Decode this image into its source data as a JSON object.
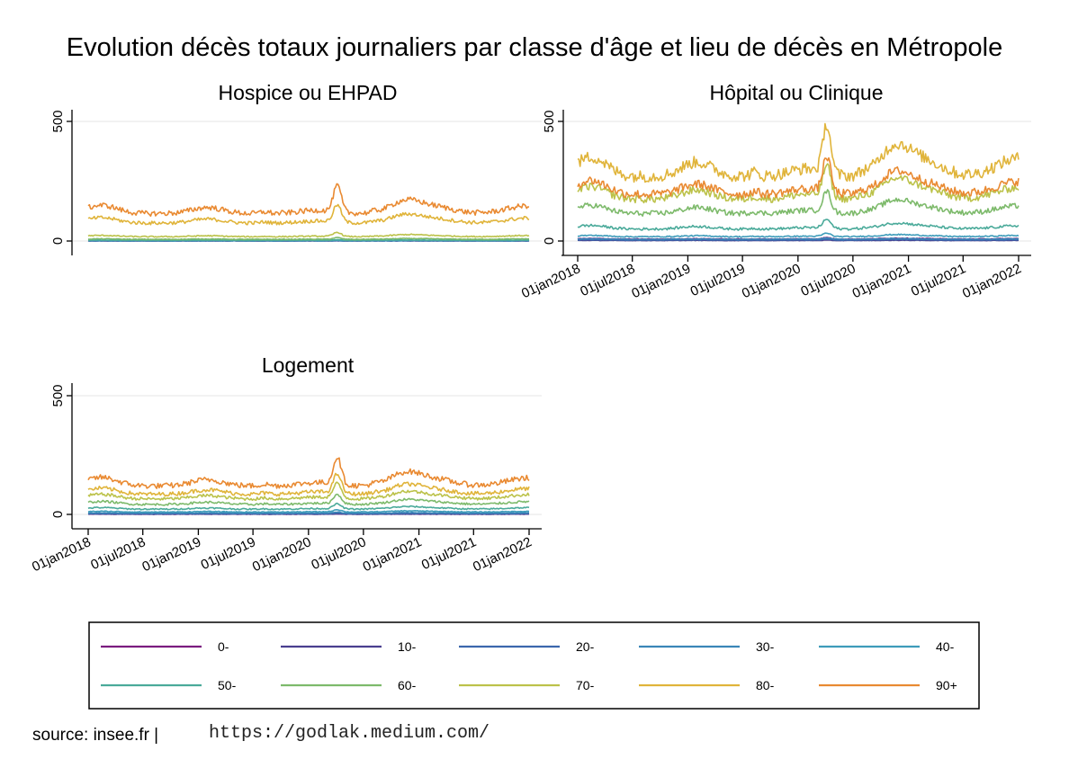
{
  "title": "Evolution décès totaux journaliers par classe d'âge et lieu de décès en Métropole",
  "footer": {
    "source": "source: insee.fr |",
    "url": "https://godlak.medium.com/"
  },
  "chart_data": {
    "type": "line",
    "x_ticks": [
      "01jan2018",
      "01jul2018",
      "01jan2019",
      "01jul2019",
      "01jan2020",
      "01jul2020",
      "01jan2021",
      "01jul2021",
      "01jan2022"
    ],
    "x_range": [
      "2018-01-01",
      "2022-01-01"
    ],
    "y_ticks": [
      0,
      500
    ],
    "ylim": [
      -50,
      560
    ],
    "grid": true,
    "legend": {
      "position": "bottom",
      "items": [
        {
          "label": "0-",
          "color": "#7b1c7f"
        },
        {
          "label": "10-",
          "color": "#4a3f8f"
        },
        {
          "label": "20-",
          "color": "#3b67ad"
        },
        {
          "label": "30-",
          "color": "#3a86b8"
        },
        {
          "label": "40-",
          "color": "#3e9cba"
        },
        {
          "label": "50-",
          "color": "#4aaa9a"
        },
        {
          "label": "60-",
          "color": "#7dba6b"
        },
        {
          "label": "70-",
          "color": "#bcc24a"
        },
        {
          "label": "80-",
          "color": "#e0b43a"
        },
        {
          "label": "90+",
          "color": "#e98a32"
        }
      ]
    },
    "panels": [
      {
        "name": "Hospice ou EHPAD",
        "show_x_axis": false,
        "series": [
          {
            "name": "0-",
            "base": 0.5
          },
          {
            "name": "10-",
            "base": 0.5
          },
          {
            "name": "20-",
            "base": 0.5
          },
          {
            "name": "30-",
            "base": 1
          },
          {
            "name": "40-",
            "base": 1.5
          },
          {
            "name": "50-",
            "base": 3
          },
          {
            "name": "60-",
            "base": 7
          },
          {
            "name": "70-",
            "base": 18
          },
          {
            "name": "80-",
            "base": 75
          },
          {
            "name": "90+",
            "base": 115
          }
        ]
      },
      {
        "name": "Hôpital ou Clinique",
        "show_x_axis": true,
        "series": [
          {
            "name": "0-",
            "base": 8
          },
          {
            "name": "10-",
            "base": 2
          },
          {
            "name": "20-",
            "base": 4
          },
          {
            "name": "30-",
            "base": 7
          },
          {
            "name": "40-",
            "base": 18
          },
          {
            "name": "50-",
            "base": 50
          },
          {
            "name": "60-",
            "base": 115
          },
          {
            "name": "70-",
            "base": 175
          },
          {
            "name": "80-",
            "base": 270
          },
          {
            "name": "90+",
            "base": 195
          }
        ]
      },
      {
        "name": "Logement",
        "show_x_axis": true,
        "series": [
          {
            "name": "0-",
            "base": 1
          },
          {
            "name": "10-",
            "base": 1
          },
          {
            "name": "20-",
            "base": 3
          },
          {
            "name": "30-",
            "base": 5
          },
          {
            "name": "40-",
            "base": 10
          },
          {
            "name": "50-",
            "base": 22
          },
          {
            "name": "60-",
            "base": 42
          },
          {
            "name": "70-",
            "base": 65
          },
          {
            "name": "80-",
            "base": 85
          },
          {
            "name": "90+",
            "base": 120
          }
        ]
      }
    ]
  }
}
